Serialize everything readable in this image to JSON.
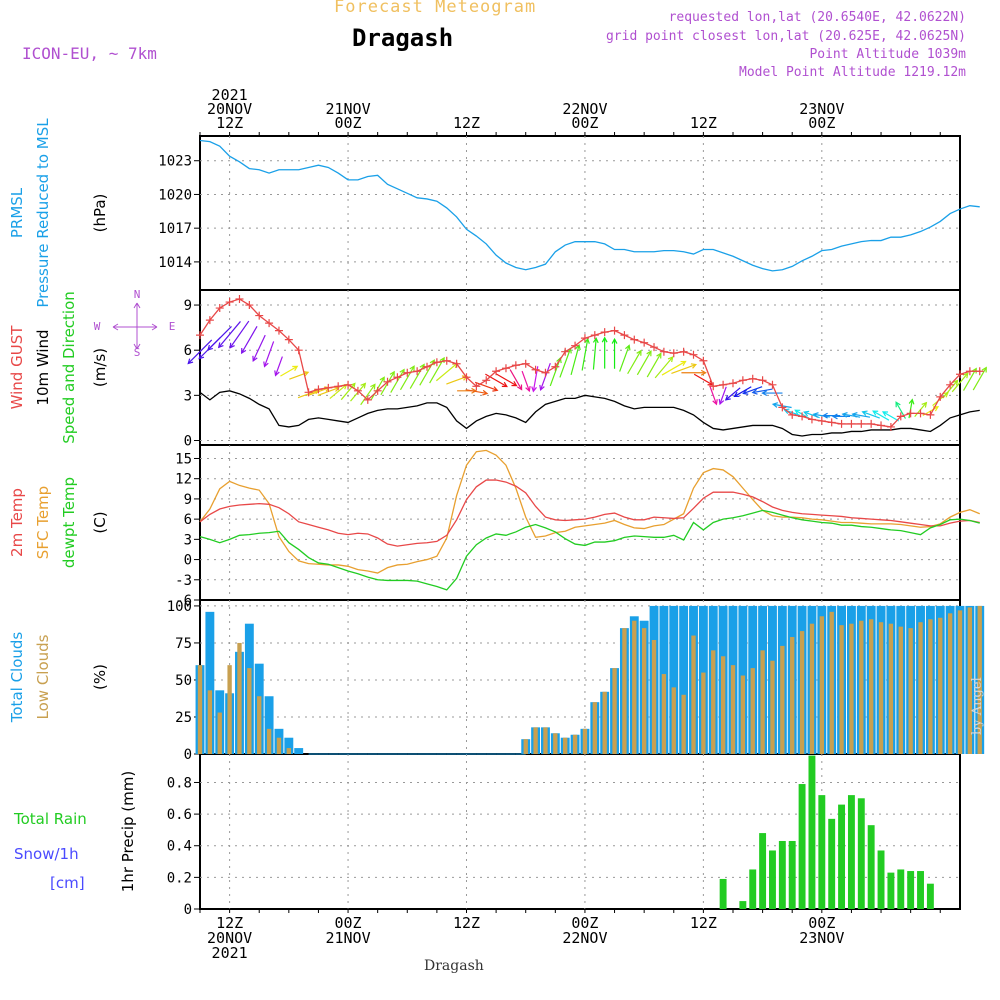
{
  "header": {
    "title": "Forecast Meteogram",
    "location": "Dragash",
    "model": "ICON-EU, ~ 7km",
    "requested": "requested lon,lat (20.6540E, 42.0622N)",
    "grid_point": "grid point closest lon,lat (20.625E, 42.0625N)",
    "point_altitude": "Point Altitude 1039m",
    "model_altitude": "Model Point Altitude 1219.12m",
    "footer": "Dragash",
    "credit": "by Angel"
  },
  "colors": {
    "prmsl": "#1aa0e8",
    "gust": "#e84848",
    "wind": "#000000",
    "direction": "#22cc22",
    "temp2m": "#e84848",
    "sfc": "#e8a030",
    "dewpt": "#22cc22",
    "total_clouds": "#1aa0e8",
    "low_clouds": "#c8a050",
    "rain": "#22cc22",
    "snow": "#4a4aff",
    "purple": "#b050d0",
    "title_orange": "#f0c060"
  },
  "time_axis": {
    "top_labels": [
      {
        "t": 3,
        "lines": [
          "2021",
          "20NOV",
          "12Z"
        ]
      },
      {
        "t": 15,
        "lines": [
          "21NOV",
          "00Z"
        ]
      },
      {
        "t": 27,
        "lines": [
          "12Z"
        ]
      },
      {
        "t": 39,
        "lines": [
          "22NOV",
          "00Z"
        ]
      },
      {
        "t": 51,
        "lines": [
          "12Z"
        ]
      },
      {
        "t": 63,
        "lines": [
          "23NOV",
          "00Z"
        ]
      }
    ],
    "bottom_labels": [
      {
        "t": 3,
        "lines": [
          "12Z",
          "20NOV",
          "2021"
        ]
      },
      {
        "t": 15,
        "lines": [
          "00Z",
          "21NOV"
        ]
      },
      {
        "t": 27,
        "lines": [
          "12Z"
        ]
      },
      {
        "t": 39,
        "lines": [
          "00Z",
          "22NOV"
        ]
      },
      {
        "t": 51,
        "lines": [
          "12Z"
        ]
      },
      {
        "t": 63,
        "lines": [
          "00Z",
          "23NOV"
        ]
      }
    ],
    "start": "2021-11-20 09Z",
    "hours": 77
  },
  "chart_data": [
    {
      "type": "line",
      "title": "PRMSL Pressure Reduced to MSL",
      "label_lines": [
        "PRMSL",
        "Pressure Reduced to MSL"
      ],
      "ylabel": "(hPa)",
      "ylim": [
        1011.5,
        1025.2
      ],
      "yticks": [
        1014,
        1017,
        1020,
        1023
      ],
      "series": [
        {
          "name": "PRMSL",
          "values": [
            1024.8,
            1024.7,
            1024.3,
            1023.4,
            1022.9,
            1022.3,
            1022.2,
            1021.9,
            1022.2,
            1022.2,
            1022.2,
            1022.4,
            1022.6,
            1022.4,
            1021.9,
            1021.3,
            1021.3,
            1021.6,
            1021.7,
            1020.9,
            1020.5,
            1020.1,
            1019.7,
            1019.6,
            1019.4,
            1018.8,
            1018.0,
            1016.9,
            1016.3,
            1015.6,
            1014.6,
            1013.9,
            1013.5,
            1013.3,
            1013.5,
            1013.8,
            1014.9,
            1015.5,
            1015.8,
            1015.8,
            1015.8,
            1015.6,
            1015.1,
            1015.1,
            1014.9,
            1014.9,
            1014.9,
            1015.0,
            1015.0,
            1014.9,
            1014.7,
            1015.1,
            1015.1,
            1014.8,
            1014.5,
            1014.1,
            1013.7,
            1013.4,
            1013.2,
            1013.3,
            1013.6,
            1014.1,
            1014.5,
            1015.0,
            1015.1,
            1015.4,
            1015.6,
            1015.8,
            1015.9,
            1015.9,
            1016.2,
            1016.2,
            1016.4,
            1016.7,
            1017.1,
            1017.6,
            1018.3,
            1018.7,
            1019.0,
            1018.9
          ]
        }
      ]
    },
    {
      "type": "line",
      "title": "Wind GUST, 10m Wind Speed and Direction",
      "label_lines": [
        "Wind GUST",
        "10m Wind",
        "Speed and Direction"
      ],
      "ylabel": "(m/s)",
      "ylim": [
        -0.3,
        10.0
      ],
      "yticks": [
        0,
        3,
        6,
        9
      ],
      "compass": {
        "n": "N",
        "s": "S",
        "w": "W",
        "e": "E"
      },
      "series": [
        {
          "name": "Wind GUST",
          "values": [
            7.0,
            8.0,
            8.8,
            9.2,
            9.4,
            9.0,
            8.3,
            7.8,
            7.3,
            6.7,
            6.0,
            3.2,
            3.4,
            3.5,
            3.6,
            3.7,
            3.3,
            2.7,
            3.3,
            3.9,
            4.2,
            4.5,
            4.6,
            4.9,
            5.2,
            5.3,
            5.1,
            4.2,
            3.6,
            4.0,
            4.6,
            4.8,
            5.0,
            5.1,
            4.7,
            4.5,
            4.9,
            5.9,
            6.3,
            6.8,
            7.0,
            7.2,
            7.3,
            7.0,
            6.7,
            6.5,
            6.2,
            5.9,
            5.8,
            5.9,
            5.7,
            5.3,
            3.6,
            3.7,
            3.8,
            4.0,
            4.1,
            4.0,
            3.7,
            2.2,
            1.7,
            1.6,
            1.4,
            1.3,
            1.2,
            1.1,
            1.1,
            1.1,
            1.1,
            1.0,
            0.9,
            1.6,
            1.8,
            1.8,
            1.7,
            2.9,
            3.7,
            4.4,
            4.6,
            4.6
          ]
        },
        {
          "name": "10m Wind",
          "values": [
            3.2,
            2.7,
            3.2,
            3.3,
            3.1,
            2.8,
            2.4,
            2.1,
            1.0,
            0.9,
            1.0,
            1.4,
            1.5,
            1.4,
            1.3,
            1.2,
            1.5,
            1.8,
            2.0,
            2.1,
            2.1,
            2.2,
            2.3,
            2.5,
            2.5,
            2.2,
            1.3,
            0.8,
            1.3,
            1.6,
            1.8,
            1.7,
            1.5,
            1.2,
            1.9,
            2.4,
            2.6,
            2.8,
            2.8,
            3.0,
            2.9,
            2.8,
            2.6,
            2.3,
            2.1,
            2.2,
            2.2,
            2.2,
            2.2,
            2.0,
            1.7,
            1.2,
            0.8,
            0.7,
            0.8,
            0.9,
            1.0,
            1.0,
            1.0,
            0.8,
            0.4,
            0.3,
            0.4,
            0.4,
            0.5,
            0.5,
            0.6,
            0.6,
            0.7,
            0.7,
            0.7,
            0.8,
            0.8,
            0.7,
            0.6,
            1.0,
            1.5,
            1.7,
            1.9,
            2.0
          ]
        },
        {
          "name": "Direction (deg, from)",
          "values": [
            45,
            45,
            45,
            40,
            35,
            30,
            25,
            20,
            20,
            240,
            250,
            250,
            250,
            250,
            230,
            220,
            220,
            215,
            210,
            210,
            210,
            210,
            210,
            210,
            210,
            230,
            250,
            270,
            280,
            290,
            300,
            300,
            330,
            340,
            10,
            20,
            200,
            200,
            195,
            190,
            185,
            180,
            180,
            200,
            210,
            210,
            210,
            220,
            240,
            250,
            270,
            300,
            340,
            20,
            50,
            60,
            70,
            80,
            90,
            100,
            110,
            120,
            110,
            100,
            90,
            90,
            100,
            100,
            110,
            120,
            120,
            150,
            190,
            220,
            240,
            230,
            220,
            220,
            210,
            210
          ]
        }
      ]
    },
    {
      "type": "line",
      "title": "2m Temp, SFC Temp, dewpt Temp",
      "label_lines": [
        "2m Temp",
        "SFC Temp",
        "dewpt Temp"
      ],
      "ylabel": "(C)",
      "ylim": [
        -6,
        17
      ],
      "yticks": [
        -6,
        -3,
        0,
        3,
        6,
        9,
        12,
        15
      ],
      "series": [
        {
          "name": "2m Temp",
          "values": [
            5.6,
            6.7,
            7.5,
            7.9,
            8.1,
            8.2,
            8.3,
            8.2,
            7.7,
            6.8,
            5.6,
            5.2,
            4.8,
            4.4,
            3.9,
            3.7,
            3.9,
            3.8,
            3.2,
            2.3,
            2.0,
            2.2,
            2.4,
            2.5,
            2.7,
            3.6,
            5.9,
            8.9,
            10.8,
            11.8,
            11.8,
            11.5,
            10.9,
            9.9,
            7.9,
            6.3,
            5.9,
            5.8,
            5.9,
            6.0,
            6.3,
            6.7,
            6.9,
            6.3,
            5.9,
            5.9,
            6.3,
            6.2,
            6.1,
            6.2,
            7.6,
            9.1,
            10.0,
            10.0,
            10.0,
            9.7,
            9.3,
            8.6,
            7.8,
            7.3,
            7.0,
            6.8,
            6.7,
            6.6,
            6.5,
            6.4,
            6.2,
            6.1,
            6.0,
            5.9,
            5.8,
            5.6,
            5.4,
            5.2,
            5.0,
            5.0,
            5.4,
            5.7,
            5.8,
            5.5
          ]
        },
        {
          "name": "SFC Temp",
          "values": [
            5.6,
            7.5,
            10.5,
            11.6,
            11.0,
            10.6,
            10.3,
            8.3,
            3.4,
            1.2,
            -0.2,
            -0.6,
            -0.7,
            -0.8,
            -0.8,
            -1.0,
            -1.5,
            -1.7,
            -2.0,
            -1.2,
            -0.8,
            -0.7,
            -0.3,
            0.0,
            0.5,
            3.2,
            9.5,
            14.0,
            16.0,
            16.2,
            15.5,
            14.0,
            10.6,
            6.3,
            3.3,
            3.5,
            4.0,
            4.2,
            4.8,
            5.0,
            5.2,
            5.4,
            5.8,
            5.2,
            4.7,
            4.6,
            5.0,
            5.2,
            6.0,
            6.8,
            10.6,
            12.9,
            13.5,
            13.3,
            12.3,
            10.6,
            8.9,
            7.3,
            6.5,
            6.3,
            6.3,
            6.2,
            6.0,
            5.9,
            5.7,
            5.5,
            5.5,
            5.4,
            5.3,
            5.3,
            5.3,
            5.2,
            5.0,
            4.8,
            4.9,
            5.3,
            6.3,
            7.0,
            7.4,
            6.8
          ]
        },
        {
          "name": "dewpt Temp",
          "values": [
            3.4,
            3.0,
            2.5,
            3.0,
            3.6,
            3.7,
            3.9,
            4.0,
            4.2,
            2.5,
            1.5,
            0.3,
            -0.5,
            -0.7,
            -1.2,
            -1.7,
            -2.1,
            -2.6,
            -3.0,
            -3.1,
            -3.1,
            -3.1,
            -3.2,
            -3.6,
            -4.0,
            -4.5,
            -2.8,
            0.5,
            2.2,
            3.2,
            3.8,
            3.6,
            4.1,
            4.8,
            5.2,
            4.7,
            4.1,
            3.1,
            2.3,
            2.1,
            2.6,
            2.6,
            2.8,
            3.3,
            3.5,
            3.4,
            3.3,
            3.3,
            3.6,
            2.9,
            5.5,
            4.4,
            5.5,
            6.0,
            6.2,
            6.5,
            6.9,
            7.3,
            7.0,
            6.6,
            6.2,
            5.9,
            5.7,
            5.5,
            5.4,
            5.1,
            5.1,
            4.9,
            4.8,
            4.6,
            4.4,
            4.3,
            4.0,
            3.7,
            4.7,
            5.2,
            5.9,
            6.0,
            5.8,
            5.4
          ]
        }
      ]
    },
    {
      "type": "bar",
      "title": "Total Clouds, Low Clouds",
      "label_lines": [
        "Total Clouds",
        "Low Clouds"
      ],
      "ylabel": "(%)",
      "ylim": [
        0,
        104
      ],
      "yticks": [
        0,
        25,
        50,
        75,
        100
      ],
      "series": [
        {
          "name": "Total Clouds",
          "values": [
            60,
            96,
            43,
            41,
            69,
            88,
            61,
            39,
            17,
            11,
            4,
            0,
            0,
            0,
            0,
            0,
            0,
            0,
            0,
            0,
            0,
            0,
            0,
            0,
            0,
            0,
            0,
            0,
            0,
            0,
            0,
            0,
            0,
            10,
            18,
            18,
            14,
            11,
            13,
            17,
            35,
            42,
            58,
            85,
            93,
            90,
            100,
            100,
            100,
            100,
            100,
            100,
            100,
            100,
            100,
            100,
            100,
            100,
            100,
            100,
            100,
            100,
            100,
            100,
            100,
            100,
            100,
            100,
            100,
            100,
            100,
            100,
            100,
            100,
            100,
            100,
            100,
            100,
            100,
            100
          ]
        },
        {
          "name": "Low Clouds",
          "values": [
            60,
            43,
            28,
            60,
            75,
            58,
            39,
            17,
            11,
            4,
            0,
            0,
            0,
            0,
            0,
            0,
            0,
            0,
            0,
            0,
            0,
            0,
            0,
            0,
            0,
            0,
            0,
            0,
            0,
            0,
            0,
            0,
            0,
            10,
            18,
            18,
            14,
            11,
            13,
            17,
            35,
            42,
            58,
            85,
            90,
            85,
            77,
            54,
            45,
            40,
            80,
            55,
            70,
            66,
            60,
            53,
            58,
            70,
            63,
            73,
            79,
            83,
            88,
            93,
            96,
            87,
            88,
            90,
            91,
            89,
            88,
            86,
            85,
            89,
            91,
            92,
            95,
            97,
            99,
            100
          ]
        }
      ]
    },
    {
      "type": "bar",
      "title": "Total Rain, Snow/1h, 1hr Precip",
      "label_lines": [
        "Total  Rain",
        "Snow/1h",
        "[cm]"
      ],
      "ylabel": "1hr Precip (mm)",
      "ylim": [
        0,
        0.98
      ],
      "yticks": [
        0,
        0.2,
        0.4,
        0.6,
        0.8
      ],
      "series": [
        {
          "name": "Total Rain",
          "values": [
            0,
            0,
            0,
            0,
            0,
            0,
            0,
            0,
            0,
            0,
            0,
            0,
            0,
            0,
            0,
            0,
            0,
            0,
            0,
            0,
            0,
            0,
            0,
            0,
            0,
            0,
            0,
            0,
            0,
            0,
            0,
            0,
            0,
            0,
            0,
            0,
            0,
            0,
            0,
            0,
            0,
            0,
            0,
            0,
            0,
            0,
            0,
            0,
            0,
            0,
            0,
            0,
            0,
            0.19,
            0,
            0.05,
            0.25,
            0.48,
            0.37,
            0.43,
            0.43,
            0.79,
            0.97,
            0.72,
            0.57,
            0.66,
            0.72,
            0.7,
            0.53,
            0.37,
            0.23,
            0.25,
            0.24,
            0.24,
            0.16,
            0,
            0,
            0,
            0,
            0
          ]
        }
      ]
    }
  ]
}
